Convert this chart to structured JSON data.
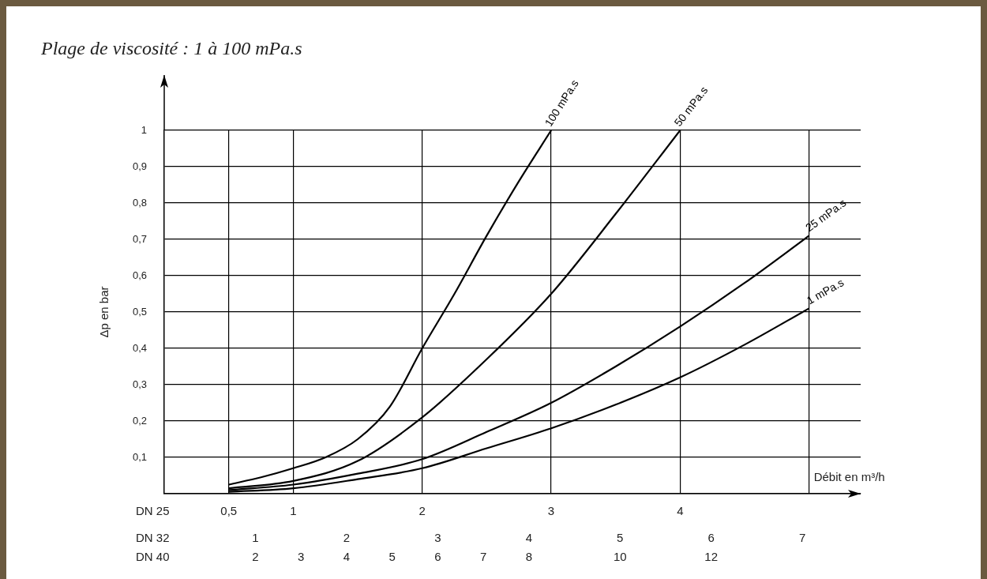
{
  "chart_data": {
    "type": "line",
    "title": "Plage de viscosité : 1 à 100 mPa.s",
    "ylabel": "Δp en bar",
    "xlabel": "DN 25",
    "x2label": "DN 32",
    "annotations": [
      "Débit en m³/h",
      "DN 40",
      "2",
      "3",
      "4",
      "5",
      "6",
      "7",
      "8",
      "10",
      "12"
    ],
    "xlim": [
      0,
      5.4
    ],
    "xticks": [
      {
        "value": 0.5,
        "label": "0,5"
      },
      1,
      2,
      3,
      4,
      {
        "value": 5,
        "label": null
      }
    ],
    "x2lim": [
      0,
      7.64
    ],
    "x2ticks": [
      1,
      2,
      3,
      4,
      5,
      6,
      7
    ],
    "ylim": [
      0,
      1
    ],
    "yticks": [
      {
        "value": 0,
        "label": null
      },
      {
        "value": 0.1,
        "label": "0,1"
      },
      {
        "value": 0.2,
        "label": "0,2"
      },
      {
        "value": 0.3,
        "label": "0,3"
      },
      {
        "value": 0.4,
        "label": "0,4"
      },
      {
        "value": 0.5,
        "label": "0,5"
      },
      {
        "value": 0.6,
        "label": "0,6"
      },
      {
        "value": 0.7,
        "label": "0,7"
      },
      {
        "value": 0.8,
        "label": "0,8"
      },
      {
        "value": 0.9,
        "label": "0,9"
      },
      1
    ],
    "grid": true,
    "legend": false,
    "marker": "none",
    "line_style": "solid",
    "series": [
      {
        "name": "100 mPa.s",
        "color": "#000000",
        "x": [
          0.5,
          0.75,
          1,
          1.25,
          1.5,
          1.75,
          2,
          2.25,
          2.5,
          2.75,
          3
        ],
        "values": [
          0.025,
          0.045,
          0.07,
          0.1,
          0.15,
          0.24,
          0.4,
          0.55,
          0.71,
          0.86,
          1
        ]
      },
      {
        "name": "50 mPa.s",
        "color": "#000000",
        "x": [
          0.5,
          1,
          1.5,
          2,
          2.5,
          3,
          3.5,
          4
        ],
        "values": [
          0.015,
          0.035,
          0.09,
          0.21,
          0.37,
          0.55,
          0.77,
          1
        ]
      },
      {
        "name": "25 mPa.s",
        "color": "#000000",
        "x": [
          0.5,
          1,
          1.5,
          2,
          2.5,
          3,
          3.5,
          4,
          4.5,
          5
        ],
        "values": [
          0.01,
          0.025,
          0.055,
          0.095,
          0.17,
          0.25,
          0.35,
          0.46,
          0.58,
          0.71
        ]
      },
      {
        "name": "1 mPa.s",
        "color": "#000000",
        "x": [
          0.5,
          1,
          1.5,
          2,
          2.5,
          3,
          3.5,
          4,
          4.5,
          5
        ],
        "values": [
          0.005,
          0.015,
          0.04,
          0.07,
          0.125,
          0.18,
          0.245,
          0.32,
          0.41,
          0.51
        ]
      }
    ]
  }
}
